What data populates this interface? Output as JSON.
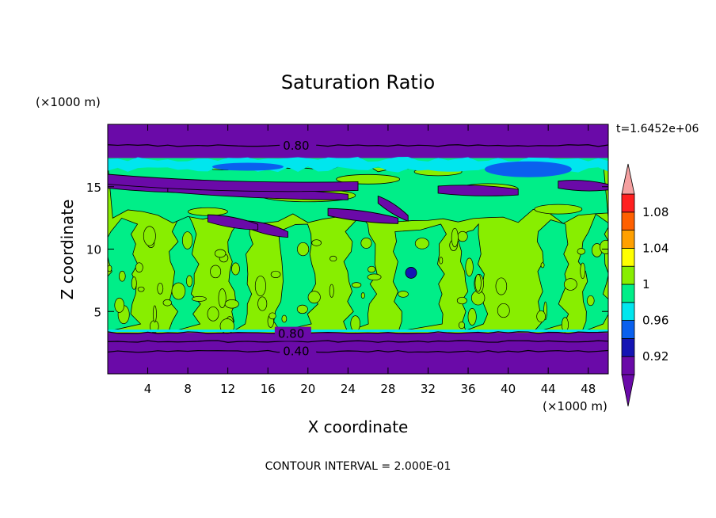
{
  "chart_data": {
    "type": "heatmap",
    "title": "Saturation Ratio",
    "xlabel": "X coordinate",
    "ylabel": "Z coordinate",
    "x_unit": "(×1000 m)",
    "y_unit": "(×1000 m)",
    "timestamp": "t=1.6452e+06",
    "footer": "CONTOUR INTERVAL = 2.000E-01",
    "xlim": [
      0,
      50
    ],
    "ylim": [
      0,
      20
    ],
    "x_ticks": [
      "4",
      "8",
      "12",
      "16",
      "20",
      "24",
      "28",
      "32",
      "36",
      "40",
      "44",
      "48"
    ],
    "y_ticks": [
      "5",
      "10",
      "15"
    ],
    "x_tick_values": [
      4,
      8,
      12,
      16,
      20,
      24,
      28,
      32,
      36,
      40,
      44,
      48
    ],
    "y_tick_values": [
      5,
      10,
      15
    ],
    "contour_labels": [
      {
        "text": "0.80",
        "x": 17.5,
        "z": 18.3
      },
      {
        "text": "0.80",
        "x": 17.0,
        "z": 3.2
      },
      {
        "text": "0.40",
        "x": 17.5,
        "z": 1.8
      }
    ],
    "colorbar": {
      "levels": [
        0.9,
        0.92,
        0.94,
        0.96,
        0.98,
        1.0,
        1.02,
        1.04,
        1.06,
        1.08,
        1.1
      ],
      "tick_labels": [
        "0.92",
        "0.96",
        "1",
        "1.04",
        "1.08"
      ],
      "tick_values": [
        0.92,
        0.96,
        1.0,
        1.04,
        1.08
      ],
      "colors": [
        "#6a0aa8",
        "#1414b4",
        "#0a60ee",
        "#00e6ee",
        "#00ee88",
        "#88ee00",
        "#ffff00",
        "#ffa000",
        "#ff6000",
        "#ff2020"
      ],
      "under_color": "#6a0aa8",
      "over_color": "#f5a0a0"
    },
    "bands": [
      {
        "z0": 0.0,
        "z1": 3.3,
        "value": "0.90"
      },
      {
        "z0": 3.3,
        "z1": 16.5,
        "value": "1.00"
      },
      {
        "z0": 16.5,
        "z1": 17.3,
        "value": "0.98"
      },
      {
        "z0": 17.3,
        "z1": 20.0,
        "value": "0.90"
      }
    ]
  }
}
